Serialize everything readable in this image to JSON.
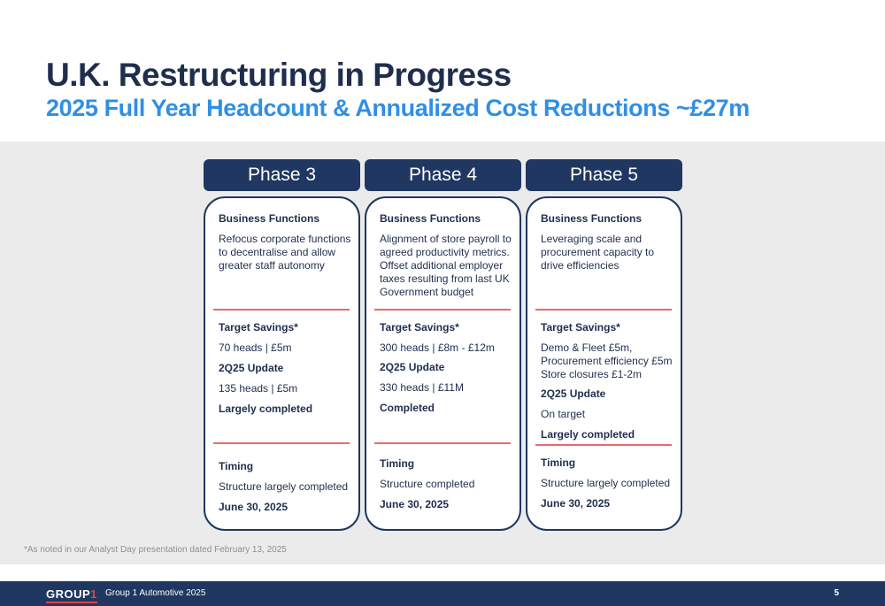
{
  "title": "U.K. Restructuring in Progress",
  "subtitle": "2025 Full Year Headcount & Annualized Cost Reductions ~£27m",
  "phases": [
    {
      "header": "Phase 3",
      "business_label": "Business Functions",
      "business_text": "Refocus corporate functions to decentralise and allow greater staff autonomy",
      "target_label": "Target Savings*",
      "target_text": "70 heads | £5m",
      "update_label": "2Q25 Update",
      "update_text": "135 heads | £5m",
      "status": "Largely completed",
      "timing_label": "Timing",
      "timing_text": "Structure largely completed",
      "timing_date": "June 30, 2025"
    },
    {
      "header": "Phase 4",
      "business_label": "Business Functions",
      "business_text": "Alignment of store payroll to agreed productivity metrics. Offset additional employer taxes resulting from last UK Government budget",
      "target_label": "Target Savings*",
      "target_text": "300 heads | £8m - £12m",
      "update_label": "2Q25 Update",
      "update_text": "330 heads | £11M",
      "status": "Completed",
      "timing_label": "Timing",
      "timing_text": "Structure completed",
      "timing_date": "June 30, 2025"
    },
    {
      "header": "Phase 5",
      "business_label": "Business Functions",
      "business_text": "Leveraging scale and procurement capacity to drive efficiencies",
      "target_label": "Target Savings*",
      "target_text": "Demo & Fleet £5m, Procurement efficiency £5m Store closures £1-2m",
      "update_label": "2Q25 Update",
      "update_text": "On target",
      "status": "Largely completed",
      "timing_label": "Timing",
      "timing_text": "Structure largely completed",
      "timing_date": "June 30, 2025"
    }
  ],
  "footnote": "*As noted in our Analyst Day presentation dated February 13, 2025",
  "footer": {
    "logo_text": "GROUP",
    "logo_num": "1",
    "company": "Group 1 Automotive 2025",
    "page_number": "5"
  },
  "colors": {
    "navy": "#1f3761",
    "accent_blue": "#2f8fe6",
    "divider_red": "#e86a6a"
  }
}
